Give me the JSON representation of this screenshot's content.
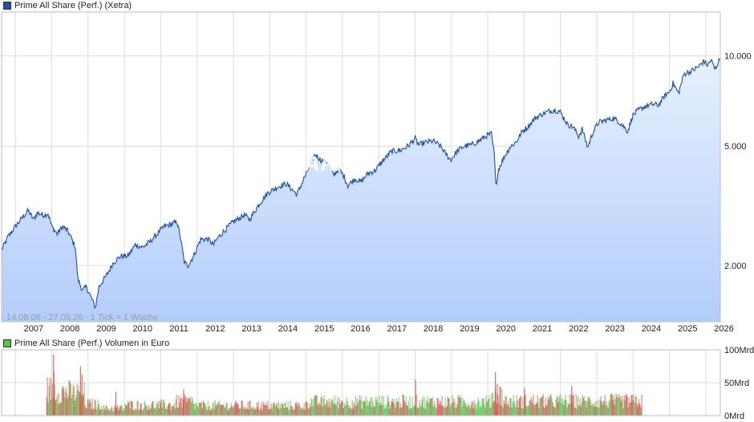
{
  "legend_main": {
    "label": "Prime All Share (Perf.) (Xetra)",
    "color": "#1f4fa8"
  },
  "legend_volume": {
    "label": "Prime All Share (Perf.) Volumen in Euro",
    "color": "#55c24f"
  },
  "info_text": "14.08.06 - 27.05.26   1 Tick = 1 Woche",
  "watermark": "ARIVA",
  "chart_data": [
    {
      "type": "area",
      "scale": "log",
      "x_labels": [
        "2007",
        "2008",
        "2009",
        "2010",
        "2011",
        "2012",
        "2013",
        "2014",
        "2015",
        "2016",
        "2017",
        "2018",
        "2019",
        "2020",
        "2021",
        "2022",
        "2023",
        "2024",
        "2025",
        "2026"
      ],
      "y_ticks": [
        2000,
        5000,
        10000
      ],
      "y_tick_labels": [
        "2.000",
        "5.000",
        "10.000"
      ],
      "ylim": [
        1300,
        14000
      ],
      "xlim": [
        2006.62,
        2026.4
      ],
      "grid": true,
      "line_color": "#1f4fa8",
      "fill_top": "#e6f0ff",
      "fill_bottom": "#b3cdfa",
      "points": [
        [
          2006.62,
          2250
        ],
        [
          2006.8,
          2500
        ],
        [
          2007.0,
          2700
        ],
        [
          2007.2,
          2900
        ],
        [
          2007.35,
          3050
        ],
        [
          2007.5,
          2850
        ],
        [
          2007.6,
          3000
        ],
        [
          2007.75,
          2950
        ],
        [
          2007.9,
          2980
        ],
        [
          2008.0,
          2700
        ],
        [
          2008.15,
          2550
        ],
        [
          2008.3,
          2700
        ],
        [
          2008.45,
          2600
        ],
        [
          2008.55,
          2450
        ],
        [
          2008.65,
          2300
        ],
        [
          2008.72,
          1800
        ],
        [
          2008.85,
          1650
        ],
        [
          2008.95,
          1700
        ],
        [
          2009.1,
          1550
        ],
        [
          2009.2,
          1450
        ],
        [
          2009.3,
          1700
        ],
        [
          2009.5,
          1850
        ],
        [
          2009.7,
          2050
        ],
        [
          2009.9,
          2150
        ],
        [
          2010.1,
          2150
        ],
        [
          2010.3,
          2350
        ],
        [
          2010.5,
          2300
        ],
        [
          2010.7,
          2400
        ],
        [
          2010.9,
          2550
        ],
        [
          2011.1,
          2700
        ],
        [
          2011.3,
          2750
        ],
        [
          2011.45,
          2800
        ],
        [
          2011.55,
          2450
        ],
        [
          2011.65,
          2050
        ],
        [
          2011.75,
          2000
        ],
        [
          2011.9,
          2150
        ],
        [
          2012.1,
          2450
        ],
        [
          2012.3,
          2450
        ],
        [
          2012.45,
          2350
        ],
        [
          2012.6,
          2500
        ],
        [
          2012.8,
          2650
        ],
        [
          2013.0,
          2800
        ],
        [
          2013.3,
          2950
        ],
        [
          2013.45,
          2850
        ],
        [
          2013.7,
          3200
        ],
        [
          2013.95,
          3500
        ],
        [
          2014.2,
          3650
        ],
        [
          2014.45,
          3750
        ],
        [
          2014.6,
          3600
        ],
        [
          2014.75,
          3450
        ],
        [
          2014.9,
          3800
        ],
        [
          2015.1,
          4300
        ],
        [
          2015.25,
          4700
        ],
        [
          2015.4,
          4500
        ],
        [
          2015.6,
          4400
        ],
        [
          2015.75,
          4000
        ],
        [
          2015.9,
          4200
        ],
        [
          2016.05,
          3950
        ],
        [
          2016.15,
          3700
        ],
        [
          2016.35,
          3900
        ],
        [
          2016.5,
          3800
        ],
        [
          2016.7,
          4050
        ],
        [
          2016.9,
          4150
        ],
        [
          2017.1,
          4450
        ],
        [
          2017.35,
          4800
        ],
        [
          2017.6,
          4850
        ],
        [
          2017.8,
          5000
        ],
        [
          2018.0,
          5300
        ],
        [
          2018.1,
          5050
        ],
        [
          2018.3,
          5150
        ],
        [
          2018.5,
          5200
        ],
        [
          2018.7,
          5000
        ],
        [
          2018.85,
          4700
        ],
        [
          2018.98,
          4500
        ],
        [
          2019.15,
          4800
        ],
        [
          2019.35,
          5000
        ],
        [
          2019.55,
          5050
        ],
        [
          2019.75,
          5200
        ],
        [
          2019.95,
          5400
        ],
        [
          2020.1,
          5500
        ],
        [
          2020.18,
          4700
        ],
        [
          2020.22,
          3700
        ],
        [
          2020.3,
          4200
        ],
        [
          2020.45,
          4600
        ],
        [
          2020.6,
          4950
        ],
        [
          2020.8,
          5200
        ],
        [
          2020.95,
          5600
        ],
        [
          2021.1,
          5800
        ],
        [
          2021.3,
          6200
        ],
        [
          2021.5,
          6400
        ],
        [
          2021.7,
          6550
        ],
        [
          2021.85,
          6600
        ],
        [
          2022.0,
          6500
        ],
        [
          2022.2,
          5900
        ],
        [
          2022.35,
          5800
        ],
        [
          2022.5,
          5400
        ],
        [
          2022.6,
          5700
        ],
        [
          2022.75,
          4950
        ],
        [
          2022.9,
          5600
        ],
        [
          2023.05,
          6000
        ],
        [
          2023.25,
          6100
        ],
        [
          2023.45,
          6200
        ],
        [
          2023.6,
          6050
        ],
        [
          2023.75,
          5800
        ],
        [
          2023.85,
          5600
        ],
        [
          2023.98,
          6300
        ],
        [
          2024.15,
          6600
        ],
        [
          2024.35,
          6800
        ],
        [
          2024.55,
          6900
        ],
        [
          2024.7,
          6850
        ],
        [
          2024.85,
          7300
        ],
        [
          2025.0,
          7600
        ],
        [
          2025.1,
          8100
        ],
        [
          2025.25,
          7500
        ],
        [
          2025.4,
          8700
        ],
        [
          2025.6,
          8900
        ],
        [
          2025.8,
          9200
        ],
        [
          2025.95,
          9600
        ],
        [
          2026.05,
          9300
        ],
        [
          2026.15,
          9700
        ],
        [
          2026.25,
          9000
        ],
        [
          2026.32,
          9400
        ],
        [
          2026.4,
          9800
        ]
      ]
    },
    {
      "type": "bar",
      "title": "",
      "x_labels": [],
      "y_ticks": [
        0,
        50,
        100
      ],
      "y_tick_labels": [
        "0Mrd",
        "50Mrd",
        "100Mrd"
      ],
      "ylim": [
        0,
        100
      ],
      "xlim": [
        2006.62,
        2026.4
      ],
      "grid": true,
      "up_color": "#55c24f",
      "down_color": "#d94c4c",
      "data_start": 2007.85,
      "data_end": 2024.25,
      "segments": [
        {
          "from": 2007.85,
          "to": 2008.1,
          "avg": 42
        },
        {
          "from": 2008.1,
          "to": 2008.5,
          "avg": 38
        },
        {
          "from": 2008.5,
          "to": 2008.9,
          "avg": 36
        },
        {
          "from": 2008.9,
          "to": 2009.4,
          "avg": 18
        },
        {
          "from": 2009.4,
          "to": 2010.0,
          "avg": 12
        },
        {
          "from": 2010.0,
          "to": 2011.4,
          "avg": 17
        },
        {
          "from": 2011.4,
          "to": 2011.9,
          "avg": 22
        },
        {
          "from": 2011.9,
          "to": 2015.0,
          "avg": 16
        },
        {
          "from": 2015.0,
          "to": 2019.0,
          "avg": 22
        },
        {
          "from": 2019.0,
          "to": 2020.1,
          "avg": 22
        },
        {
          "from": 2020.1,
          "to": 2020.4,
          "avg": 34
        },
        {
          "from": 2020.4,
          "to": 2024.25,
          "avg": 23
        }
      ],
      "peaks": [
        {
          "x": 2008.04,
          "v": 93
        },
        {
          "x": 2008.05,
          "v": 65
        },
        {
          "x": 2008.78,
          "v": 75
        },
        {
          "x": 2008.82,
          "v": 62
        },
        {
          "x": 2009.75,
          "v": 36
        },
        {
          "x": 2011.62,
          "v": 40
        },
        {
          "x": 2018.0,
          "v": 55
        },
        {
          "x": 2020.2,
          "v": 66
        },
        {
          "x": 2020.25,
          "v": 48
        },
        {
          "x": 2021.0,
          "v": 42
        },
        {
          "x": 2022.3,
          "v": 45
        }
      ]
    }
  ]
}
